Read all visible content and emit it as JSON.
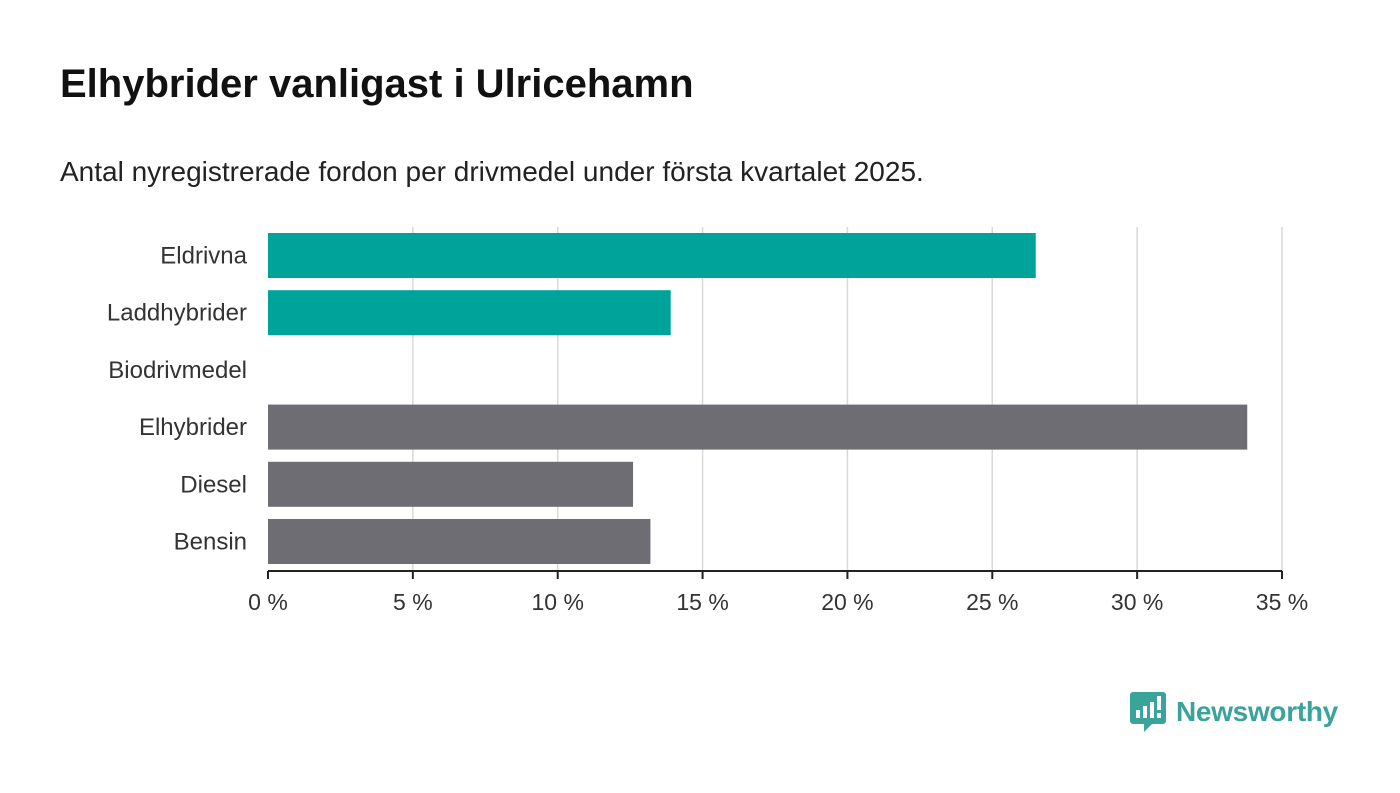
{
  "title": "Elhybrider vanligast i Ulricehamn",
  "subtitle": "Antal nyregistrerade fordon per drivmedel under första kvartalet 2025.",
  "brand": {
    "name": "Newsworthy",
    "icon": "newsworthy-logo-icon",
    "color": "#3aa39a"
  },
  "chart_data": {
    "type": "bar",
    "orientation": "horizontal",
    "categories": [
      "Eldrivna",
      "Laddhybrider",
      "Biodrivmedel",
      "Elhybrider",
      "Diesel",
      "Bensin"
    ],
    "values": [
      26.5,
      13.9,
      0,
      33.8,
      12.6,
      13.2
    ],
    "colors": [
      "#00a39a",
      "#00a39a",
      "#00a39a",
      "#6e6d74",
      "#6e6d74",
      "#6e6d74"
    ],
    "xlim": [
      0,
      35
    ],
    "xticks": [
      0,
      5,
      10,
      15,
      20,
      25,
      30,
      35
    ],
    "tick_labels": [
      "0 %",
      "5 %",
      "10 %",
      "15 %",
      "20 %",
      "25 %",
      "30 %",
      "35 %"
    ],
    "grid": true,
    "xlabel": "",
    "ylabel": ""
  }
}
